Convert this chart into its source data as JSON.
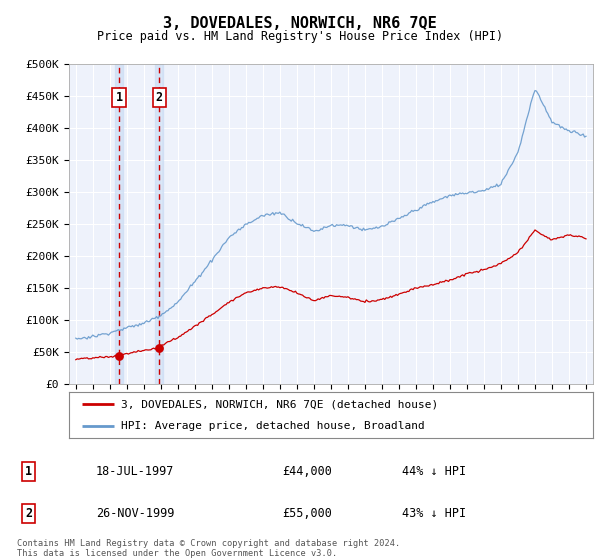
{
  "title": "3, DOVEDALES, NORWICH, NR6 7QE",
  "subtitle": "Price paid vs. HM Land Registry's House Price Index (HPI)",
  "ylabel_ticks": [
    "£0",
    "£50K",
    "£100K",
    "£150K",
    "£200K",
    "£250K",
    "£300K",
    "£350K",
    "£400K",
    "£450K",
    "£500K"
  ],
  "ytick_vals": [
    0,
    50000,
    100000,
    150000,
    200000,
    250000,
    300000,
    350000,
    400000,
    450000,
    500000
  ],
  "xlim": [
    1994.6,
    2025.4
  ],
  "ylim": [
    0,
    500000
  ],
  "background_color": "#ffffff",
  "plot_bg_color": "#eef2fb",
  "grid_color": "#ffffff",
  "sale1": {
    "date_num": 1997.54,
    "price": 44000,
    "label": "1"
  },
  "sale2": {
    "date_num": 1999.9,
    "price": 55000,
    "label": "2"
  },
  "legend_entries": [
    "3, DOVEDALES, NORWICH, NR6 7QE (detached house)",
    "HPI: Average price, detached house, Broadland"
  ],
  "table_rows": [
    [
      "1",
      "18-JUL-1997",
      "£44,000",
      "44% ↓ HPI"
    ],
    [
      "2",
      "26-NOV-1999",
      "£55,000",
      "43% ↓ HPI"
    ]
  ],
  "footnote": "Contains HM Land Registry data © Crown copyright and database right 2024.\nThis data is licensed under the Open Government Licence v3.0.",
  "hpi_color": "#6699cc",
  "price_color": "#cc0000",
  "sale_vline_color": "#cc0000",
  "shade_color": "#ccddf5"
}
